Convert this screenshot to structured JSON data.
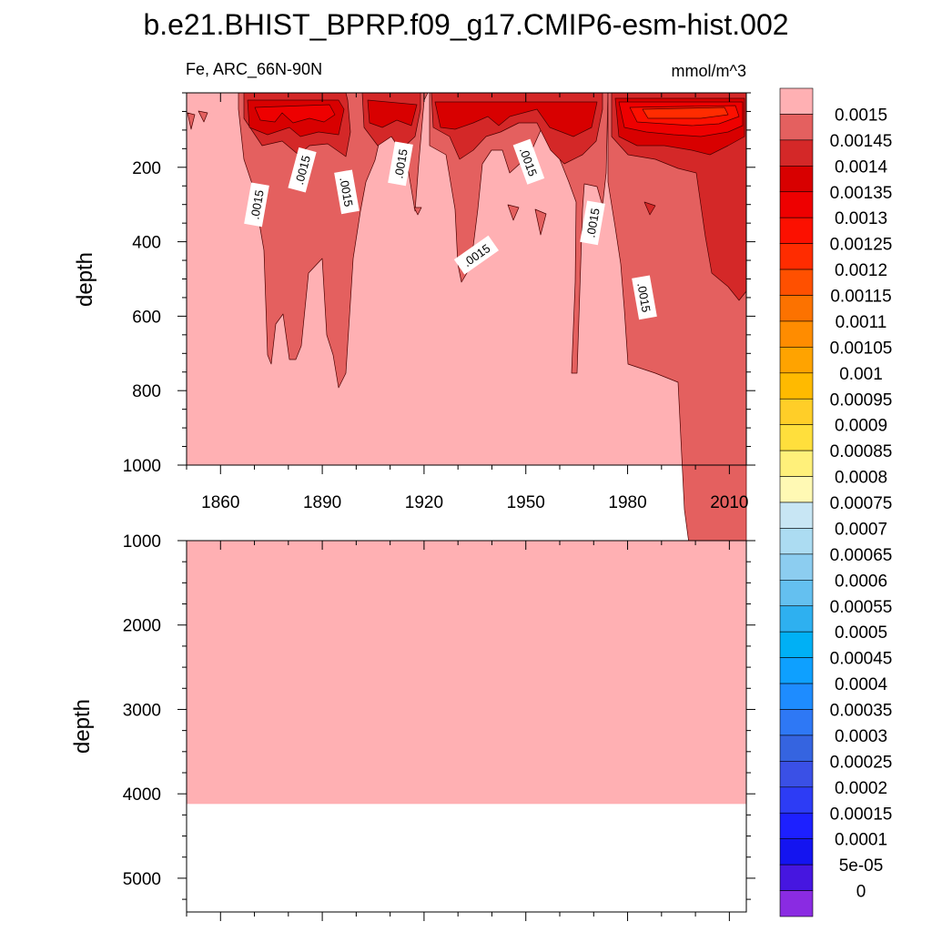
{
  "chart_data": {
    "type": "contour",
    "title": "b.e21.BHIST_BPRP.f09_g17.CMIP6-esm-hist.002",
    "variable_label": "Fe, ARC_66N-90N",
    "units": "mmol/m^3",
    "x_axis": {
      "range": [
        1850,
        2015
      ],
      "tick_labels": [
        "1860",
        "1890",
        "1920",
        "1950",
        "1980",
        "2010"
      ],
      "tick_values": [
        1860,
        1890,
        1920,
        1950,
        1980,
        2010
      ]
    },
    "panels": [
      {
        "ylabel": "depth",
        "yrange": [
          0,
          1000
        ],
        "y_tick_labels": [
          "200",
          "400",
          "600",
          "800",
          "1000"
        ],
        "y_tick_values": [
          200,
          400,
          600,
          800,
          1000
        ],
        "x_tick_labels_shown": true
      },
      {
        "ylabel": "depth",
        "yrange": [
          1000,
          5400
        ],
        "y_tick_labels": [
          "1000",
          "2000",
          "3000",
          "4000",
          "5000"
        ],
        "y_tick_values": [
          1000,
          2000,
          3000,
          4000,
          5000
        ],
        "x_tick_labels_shown": false,
        "data_bottom_depth": 4120
      }
    ],
    "contour_line_labels": [
      ".0015",
      ".0015",
      ".0015",
      ".0015",
      ".0015",
      ".0015",
      ".0015",
      ".0015"
    ],
    "colorbar": {
      "labels": [
        "0.0015",
        "0.00145",
        "0.0014",
        "0.00135",
        "0.0013",
        "0.00125",
        "0.0012",
        "0.00115",
        "0.0011",
        "0.00105",
        "0.001",
        "0.00095",
        "0.0009",
        "0.00085",
        "0.0008",
        "0.00075",
        "0.0007",
        "0.00065",
        "0.0006",
        "0.00055",
        "0.0005",
        "0.00045",
        "0.0004",
        "0.00035",
        "0.0003",
        "0.00025",
        "0.0002",
        "0.00015",
        "0.0001",
        "5e-05",
        "0"
      ],
      "colors": [
        "#ffb0b3",
        "#e4605f",
        "#d42828",
        "#d80000",
        "#ee0000",
        "#fc1000",
        "#ff2c00",
        "#ff5000",
        "#fc7200",
        "#ff8c00",
        "#ffa300",
        "#ffba00",
        "#ffce28",
        "#ffdf3c",
        "#fff07a",
        "#fff9b4",
        "#c8e6f4",
        "#acdcf2",
        "#8ccdf0",
        "#64c0f0",
        "#2eb0f0",
        "#00b0f5",
        "#0ea0ff",
        "#1e8cff",
        "#2e78f5",
        "#3564e0",
        "#3a50e6",
        "#2d3cf5",
        "#1d20ff",
        "#1414f0",
        "#4616e0",
        "#8a2be2"
      ]
    }
  }
}
